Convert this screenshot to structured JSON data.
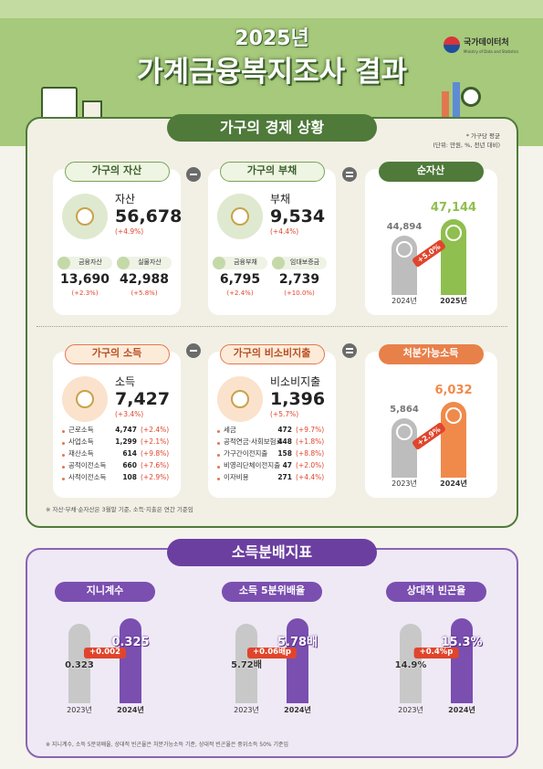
{
  "header": {
    "year": "2025년",
    "title": "가계금융복지조사 결과",
    "logo": "국가데이터처",
    "logo_sub": "Ministry of Data and Statistics"
  },
  "economy": {
    "title": "가구의 경제 상황",
    "note": "* 가구당 평균",
    "unit": "(단위: 만원, %, 전년 대비)",
    "assets": {
      "title": "가구의 자산",
      "label": "자산",
      "value": "56,678",
      "change": "(+4.9%)",
      "items": [
        {
          "name": "금융자산",
          "value": "13,690",
          "change": "(+2.3%)"
        },
        {
          "name": "실물자산",
          "value": "42,988",
          "change": "(+5.8%)"
        }
      ]
    },
    "debt": {
      "title": "가구의 부채",
      "label": "부채",
      "value": "9,534",
      "change": "(+4.4%)",
      "items": [
        {
          "name": "금융부채",
          "value": "6,795",
          "change": "(+2.4%)"
        },
        {
          "name": "임대보증금",
          "value": "2,739",
          "change": "(+10.0%)"
        }
      ]
    },
    "net_assets": {
      "title": "순자산",
      "bars": [
        {
          "year": "2024년",
          "value": "44,894"
        },
        {
          "year": "2025년",
          "value": "47,144"
        }
      ],
      "growth": "+5.0%"
    },
    "income": {
      "title": "가구의 소득",
      "label": "소득",
      "value": "7,427",
      "change": "(+3.4%)",
      "items": [
        {
          "name": "근로소득",
          "value": "4,747",
          "change": "(+2.4%)"
        },
        {
          "name": "사업소득",
          "value": "1,299",
          "change": "(+2.1%)"
        },
        {
          "name": "재산소득",
          "value": "614",
          "change": "(+9.8%)"
        },
        {
          "name": "공적이전소득",
          "value": "660",
          "change": "(+7.6%)"
        },
        {
          "name": "사적이전소득",
          "value": "108",
          "change": "(+2.9%)"
        }
      ]
    },
    "non_consumption": {
      "title": "가구의 비소비지출",
      "label": "비소비지출",
      "value": "1,396",
      "change": "(+5.7%)",
      "items": [
        {
          "name": "세금",
          "value": "472",
          "change": "(+9.7%)"
        },
        {
          "name": "공적연금·사회보험료",
          "value": "448",
          "change": "(+1.8%)"
        },
        {
          "name": "가구간이전지출",
          "value": "158",
          "change": "(+8.8%)"
        },
        {
          "name": "비영리단체이전지출",
          "value": "47",
          "change": "(+2.0%)"
        },
        {
          "name": "이자비용",
          "value": "271",
          "change": "(+4.4%)"
        }
      ]
    },
    "disposable_income": {
      "title": "처분가능소득",
      "bars": [
        {
          "year": "2023년",
          "value": "5,864"
        },
        {
          "year": "2024년",
          "value": "6,032"
        }
      ],
      "growth": "+2.9%"
    },
    "footnote": "※ 자산·부채·순자산은 3월말 기준, 소득·지출은 연간 기준임"
  },
  "distribution": {
    "title": "소득분배지표",
    "indicators": [
      {
        "title": "지니계수",
        "bars": [
          {
            "year": "2023년",
            "value": "0.323"
          },
          {
            "year": "2024년",
            "value": "0.325"
          }
        ],
        "change": "+0.002"
      },
      {
        "title": "소득 5분위배율",
        "bars": [
          {
            "year": "2023년",
            "value": "5.72배"
          },
          {
            "year": "2024년",
            "value": "5.78배"
          }
        ],
        "change": "+0.06배p"
      },
      {
        "title": "상대적 빈곤율",
        "bars": [
          {
            "year": "2023년",
            "value": "14.9%"
          },
          {
            "year": "2024년",
            "value": "15.3%"
          }
        ],
        "change": "+0.4%p"
      }
    ],
    "footnote": "※ 지니계수, 소득 5분위배율, 상대적 빈곤율은 처분가능소득 기준, 상대적 빈곤율은 중위소득 50% 기준임"
  }
}
